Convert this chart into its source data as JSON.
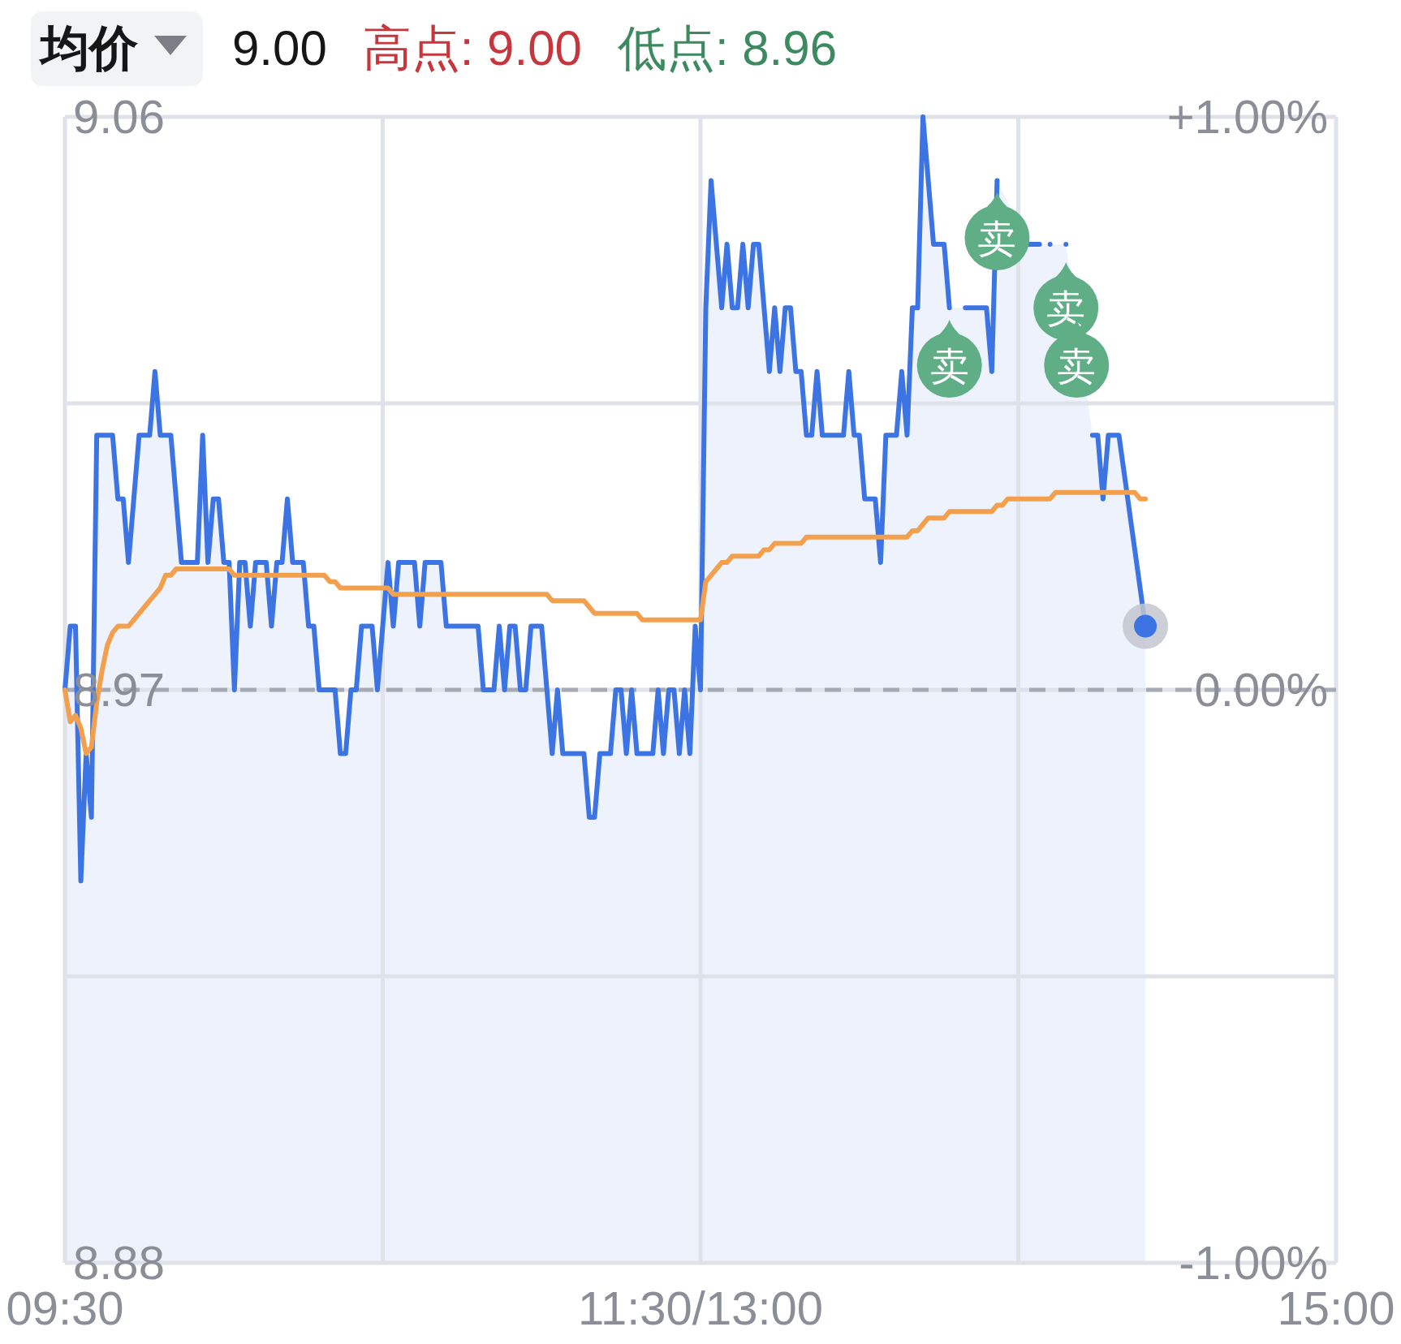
{
  "chart_data": {
    "type": "line",
    "categories": [
      "09:30",
      null,
      null,
      null,
      null,
      null,
      null,
      null,
      null,
      null,
      null,
      null,
      null,
      null,
      null,
      null,
      null,
      null,
      null,
      null,
      null,
      null,
      null,
      null,
      null,
      null,
      null,
      null,
      null,
      null,
      null,
      null,
      null,
      null,
      null,
      null,
      null,
      null,
      null,
      null,
      null,
      null,
      null,
      null,
      null,
      null,
      null,
      null,
      null,
      null,
      null,
      null,
      null,
      null,
      null,
      null,
      null,
      null,
      null,
      null,
      null,
      null,
      null,
      null,
      null,
      null,
      null,
      null,
      null,
      null,
      null,
      null,
      null,
      null,
      null,
      null,
      null,
      null,
      null,
      null,
      null,
      null,
      null,
      null,
      null,
      null,
      null,
      null,
      null,
      null,
      null,
      null,
      null,
      null,
      null,
      null,
      null,
      null,
      null,
      null,
      null,
      null,
      null,
      null,
      null,
      null,
      null,
      null,
      null,
      null,
      null,
      null,
      null,
      null,
      null,
      null,
      null,
      null,
      null,
      null,
      "11:30/13:00",
      null,
      null,
      null,
      null,
      null,
      null,
      null,
      null,
      null,
      null,
      null,
      null,
      null,
      null,
      null,
      null,
      null,
      null,
      null,
      null,
      null,
      null,
      null,
      null,
      null,
      null,
      null,
      null,
      null,
      null,
      null,
      null,
      null,
      null,
      null,
      null,
      null,
      null,
      null,
      null,
      null,
      null,
      null,
      null,
      null,
      null,
      null,
      null,
      null,
      null,
      null,
      null,
      null,
      null,
      null,
      null,
      null,
      null,
      null,
      null,
      null,
      null,
      null,
      null,
      null,
      null,
      null,
      null,
      null,
      null,
      null,
      null,
      null,
      null,
      null,
      null,
      null,
      null,
      null,
      null,
      null,
      null,
      null,
      null,
      null,
      null,
      null,
      null,
      null,
      null,
      null,
      null,
      null,
      null,
      null,
      null,
      null,
      null,
      null,
      null,
      null,
      null,
      null,
      null,
      null,
      null,
      null,
      null,
      null,
      null,
      null,
      null,
      null,
      null,
      null,
      null,
      null,
      null,
      null,
      "15:00"
    ],
    "ylim": [
      8.88,
      9.06
    ],
    "yticks": [
      8.88,
      {
        "value": 8.925,
        "label": null
      },
      8.97,
      {
        "value": 9.015,
        "label": null
      },
      9.06
    ],
    "y2lim": [
      -1,
      1
    ],
    "y2ticks": [
      {
        "value": -1,
        "label": "-1.00%"
      },
      {
        "value": 0,
        "label": "0.00%"
      },
      {
        "value": 1,
        "label": "+1.00%"
      }
    ],
    "grid": true,
    "ref_lines": [
      {
        "axis": "y",
        "value": 8.97,
        "color": "#a6aab4",
        "line_style": "dashed"
      }
    ],
    "series": [
      {
        "type": "area",
        "color": "#3d74e3",
        "values": [
          8.97,
          8.98,
          8.98,
          8.94,
          8.96,
          8.95,
          9.01,
          9.01,
          9.01,
          9.01,
          9.0,
          9.0,
          8.99,
          9.0,
          9.01,
          9.01,
          9.01,
          9.02,
          9.01,
          9.01,
          9.01,
          9.0,
          8.99,
          8.99,
          8.99,
          8.99,
          9.01,
          8.99,
          9.0,
          9.0,
          8.99,
          8.99,
          8.97,
          8.99,
          8.99,
          8.98,
          8.99,
          8.99,
          8.99,
          8.98,
          8.99,
          8.99,
          9.0,
          8.99,
          8.99,
          8.99,
          8.98,
          8.98,
          8.97,
          8.97,
          8.97,
          8.97,
          8.96,
          8.96,
          8.97,
          8.97,
          8.98,
          8.98,
          8.98,
          8.97,
          8.98,
          8.99,
          8.98,
          8.99,
          8.99,
          8.99,
          8.99,
          8.98,
          8.99,
          8.99,
          8.99,
          8.99,
          8.98,
          8.98,
          8.98,
          8.98,
          8.98,
          8.98,
          8.98,
          8.97,
          8.97,
          8.97,
          8.98,
          8.97,
          8.98,
          8.98,
          8.97,
          8.97,
          8.98,
          8.98,
          8.98,
          8.97,
          8.96,
          8.97,
          8.96,
          8.96,
          8.96,
          8.96,
          8.96,
          8.95,
          8.95,
          8.96,
          8.96,
          8.96,
          8.97,
          8.97,
          8.96,
          8.97,
          8.96,
          8.96,
          8.96,
          8.96,
          8.97,
          8.96,
          8.97,
          8.97,
          8.96,
          8.97,
          8.96,
          8.98,
          8.97,
          9.03,
          9.05,
          9.04,
          9.03,
          9.04,
          9.03,
          9.03,
          9.04,
          9.03,
          9.04,
          9.04,
          9.03,
          9.02,
          9.03,
          9.02,
          9.03,
          9.03,
          9.02,
          9.02,
          9.01,
          9.01,
          9.02,
          9.01,
          9.01,
          9.01,
          9.01,
          9.01,
          9.02,
          9.01,
          9.01,
          9.0,
          9.0,
          9.0,
          8.99,
          9.01,
          9.01,
          9.01,
          9.02,
          9.01,
          9.03,
          9.03,
          9.06,
          9.05,
          9.04,
          9.04,
          9.04,
          9.03,
          null,
          null,
          9.03,
          9.03,
          9.03,
          9.03,
          9.03,
          9.02,
          9.05,
          null,
          null,
          null,
          null,
          null,
          9.04,
          9.04,
          9.04,
          null,
          9.04,
          null,
          null,
          9.04,
          null,
          null,
          null,
          null,
          9.01,
          9.01,
          9.0,
          9.01,
          9.01,
          9.01,
          9.004,
          8.998,
          8.992,
          8.986,
          8.98,
          null,
          null,
          null,
          null,
          null,
          null,
          null,
          null,
          null,
          null,
          null,
          null,
          null,
          null,
          null,
          null,
          null,
          null,
          null,
          null,
          null,
          null,
          null,
          null,
          null,
          null,
          null,
          null,
          null,
          null,
          null,
          null,
          null,
          null,
          null,
          null
        ]
      },
      {
        "type": "line",
        "color": "#f2a04e",
        "values": [
          8.97,
          8.965,
          8.966,
          8.964,
          8.96,
          8.961,
          8.968,
          8.973,
          8.977,
          8.979,
          8.98,
          8.98,
          8.98,
          8.981,
          8.982,
          8.983,
          8.984,
          8.985,
          8.986,
          8.988,
          8.988,
          8.989,
          8.989,
          8.989,
          8.989,
          8.989,
          8.989,
          8.989,
          8.989,
          8.989,
          8.989,
          8.989,
          8.988,
          8.988,
          8.988,
          8.988,
          8.988,
          8.988,
          8.988,
          8.988,
          8.988,
          8.988,
          8.988,
          8.988,
          8.988,
          8.988,
          8.988,
          8.988,
          8.988,
          8.988,
          8.987,
          8.987,
          8.986,
          8.986,
          8.986,
          8.986,
          8.986,
          8.986,
          8.986,
          8.986,
          8.986,
          8.986,
          8.985,
          8.985,
          8.985,
          8.985,
          8.985,
          8.985,
          8.985,
          8.985,
          8.985,
          8.985,
          8.985,
          8.985,
          8.985,
          8.985,
          8.985,
          8.985,
          8.985,
          8.985,
          8.985,
          8.985,
          8.985,
          8.985,
          8.985,
          8.985,
          8.985,
          8.985,
          8.985,
          8.985,
          8.985,
          8.985,
          8.984,
          8.984,
          8.984,
          8.984,
          8.984,
          8.984,
          8.984,
          8.983,
          8.982,
          8.982,
          8.982,
          8.982,
          8.982,
          8.982,
          8.982,
          8.982,
          8.982,
          8.981,
          8.981,
          8.981,
          8.981,
          8.981,
          8.981,
          8.981,
          8.981,
          8.981,
          8.981,
          8.981,
          8.981,
          8.987,
          8.988,
          8.989,
          8.99,
          8.99,
          8.991,
          8.991,
          8.991,
          8.991,
          8.991,
          8.991,
          8.992,
          8.992,
          8.993,
          8.993,
          8.993,
          8.993,
          8.993,
          8.993,
          8.994,
          8.994,
          8.994,
          8.994,
          8.994,
          8.994,
          8.994,
          8.994,
          8.994,
          8.994,
          8.994,
          8.994,
          8.994,
          8.994,
          8.994,
          8.994,
          8.994,
          8.994,
          8.994,
          8.994,
          8.995,
          8.995,
          8.996,
          8.997,
          8.997,
          8.997,
          8.997,
          8.998,
          8.998,
          8.998,
          8.998,
          8.998,
          8.998,
          8.998,
          8.998,
          8.998,
          8.999,
          8.999,
          9.0,
          9.0,
          9.0,
          9.0,
          9.0,
          9.0,
          9.0,
          9.0,
          9.0,
          9.001,
          9.001,
          9.001,
          9.001,
          9.001,
          9.001,
          9.001,
          9.001,
          9.001,
          9.001,
          9.001,
          9.001,
          9.001,
          9.001,
          9.001,
          9.001,
          9.0,
          9.0,
          null,
          null,
          null,
          null,
          null,
          null,
          null,
          null,
          null,
          null,
          null,
          null,
          null,
          null,
          null,
          null,
          null,
          null,
          null,
          null,
          null,
          null,
          null,
          null,
          null,
          null,
          null,
          null,
          null,
          null,
          null,
          null,
          null,
          null,
          null,
          null
        ]
      },
      {
        "type": "scatter",
        "name": "卖",
        "color": "#5fae86",
        "values": [
          null,
          null,
          null,
          null,
          null,
          null,
          null,
          null,
          null,
          null,
          null,
          null,
          null,
          null,
          null,
          null,
          null,
          null,
          null,
          null,
          null,
          null,
          null,
          null,
          null,
          null,
          null,
          null,
          null,
          null,
          null,
          null,
          null,
          null,
          null,
          null,
          null,
          null,
          null,
          null,
          null,
          null,
          null,
          null,
          null,
          null,
          null,
          null,
          null,
          null,
          null,
          null,
          null,
          null,
          null,
          null,
          null,
          null,
          null,
          null,
          null,
          null,
          null,
          null,
          null,
          null,
          null,
          null,
          null,
          null,
          null,
          null,
          null,
          null,
          null,
          null,
          null,
          null,
          null,
          null,
          null,
          null,
          null,
          null,
          null,
          null,
          null,
          null,
          null,
          null,
          null,
          null,
          null,
          null,
          null,
          null,
          null,
          null,
          null,
          null,
          null,
          null,
          null,
          null,
          null,
          null,
          null,
          null,
          null,
          null,
          null,
          null,
          null,
          null,
          null,
          null,
          null,
          null,
          null,
          null,
          null,
          null,
          null,
          null,
          null,
          null,
          null,
          null,
          null,
          null,
          null,
          null,
          null,
          null,
          null,
          null,
          null,
          null,
          null,
          null,
          null,
          null,
          null,
          null,
          null,
          null,
          null,
          null,
          null,
          null,
          null,
          null,
          null,
          null,
          null,
          null,
          null,
          null,
          null,
          null,
          null,
          null,
          null,
          null,
          null,
          null,
          null,
          9.021,
          null,
          null,
          null,
          null,
          null,
          null,
          null,
          null,
          9.041,
          null,
          null,
          null,
          null,
          null,
          null,
          null,
          null,
          null,
          null,
          null,
          null,
          9.03,
          null,
          9.021,
          null,
          null,
          null,
          null,
          null,
          null,
          null,
          null,
          null,
          null,
          null,
          null,
          null,
          null,
          null,
          null,
          null,
          null,
          null,
          null,
          null,
          null,
          null,
          null,
          null,
          null,
          null,
          null,
          null,
          null,
          null,
          null,
          null,
          null,
          null,
          null,
          null,
          null,
          null,
          null,
          null,
          null,
          null,
          null,
          null,
          null,
          null,
          null,
          null
        ]
      }
    ],
    "annotations": [
      "均价",
      "9.00",
      "高点: 9.00",
      "低点: 8.96"
    ]
  }
}
